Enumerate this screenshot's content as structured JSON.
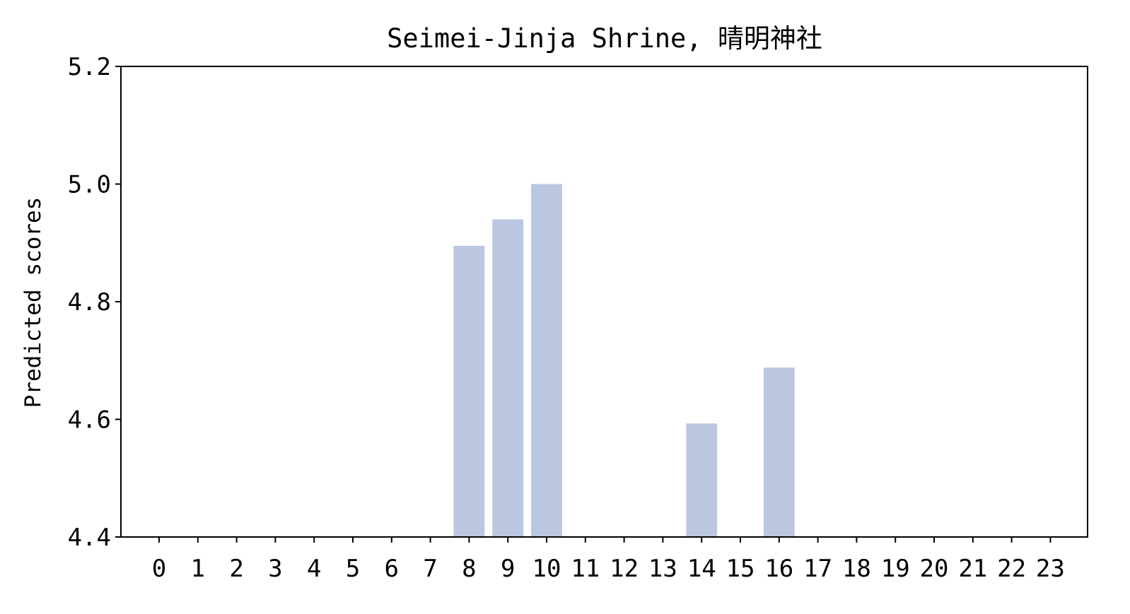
{
  "chart_data": {
    "type": "bar",
    "title": "Seimei-Jinja Shrine, 晴明神社",
    "xlabel": "",
    "ylabel": "Predicted scores",
    "categories": [
      "0",
      "1",
      "2",
      "3",
      "4",
      "5",
      "6",
      "7",
      "8",
      "9",
      "10",
      "11",
      "12",
      "13",
      "14",
      "15",
      "16",
      "17",
      "18",
      "19",
      "20",
      "21",
      "22",
      "23"
    ],
    "values": [
      null,
      null,
      null,
      null,
      null,
      null,
      null,
      null,
      4.895,
      4.94,
      5.0,
      null,
      null,
      null,
      4.593,
      null,
      4.688,
      null,
      null,
      null,
      null,
      null,
      null,
      null
    ],
    "ylim": [
      4.4,
      5.2
    ],
    "yticks": [
      "4.4",
      "4.6",
      "4.8",
      "5.0",
      "5.2"
    ],
    "grid": false,
    "bar_color": "#bbc7e0"
  }
}
